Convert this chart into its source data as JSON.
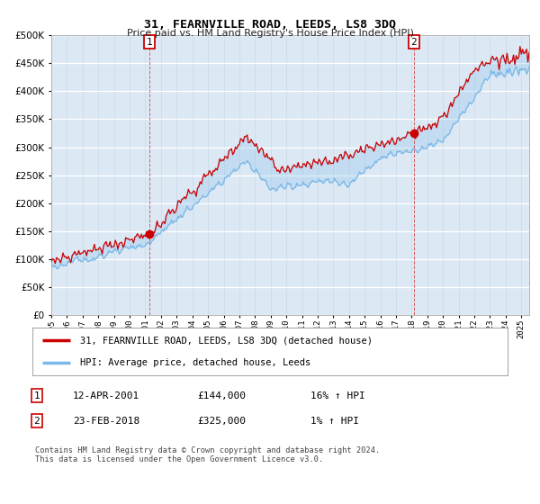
{
  "title": "31, FEARNVILLE ROAD, LEEDS, LS8 3DQ",
  "subtitle": "Price paid vs. HM Land Registry's House Price Index (HPI)",
  "background_color": "#dce9f5",
  "hpi_line_color": "#7ab8e8",
  "price_line_color": "#cc0000",
  "marker_color": "#cc0000",
  "vline_color": "#cc0000",
  "ylim": [
    0,
    500000
  ],
  "yticks": [
    0,
    50000,
    100000,
    150000,
    200000,
    250000,
    300000,
    350000,
    400000,
    450000,
    500000
  ],
  "sale1_year": 2001.28,
  "sale1_price": 144000,
  "sale2_year": 2018.14,
  "sale2_price": 325000,
  "legend_line1": "31, FEARNVILLE ROAD, LEEDS, LS8 3DQ (detached house)",
  "legend_line2": "HPI: Average price, detached house, Leeds",
  "footnote": "Contains HM Land Registry data © Crown copyright and database right 2024.\nThis data is licensed under the Open Government Licence v3.0.",
  "start_year": 1995.0,
  "end_year": 2025.5
}
